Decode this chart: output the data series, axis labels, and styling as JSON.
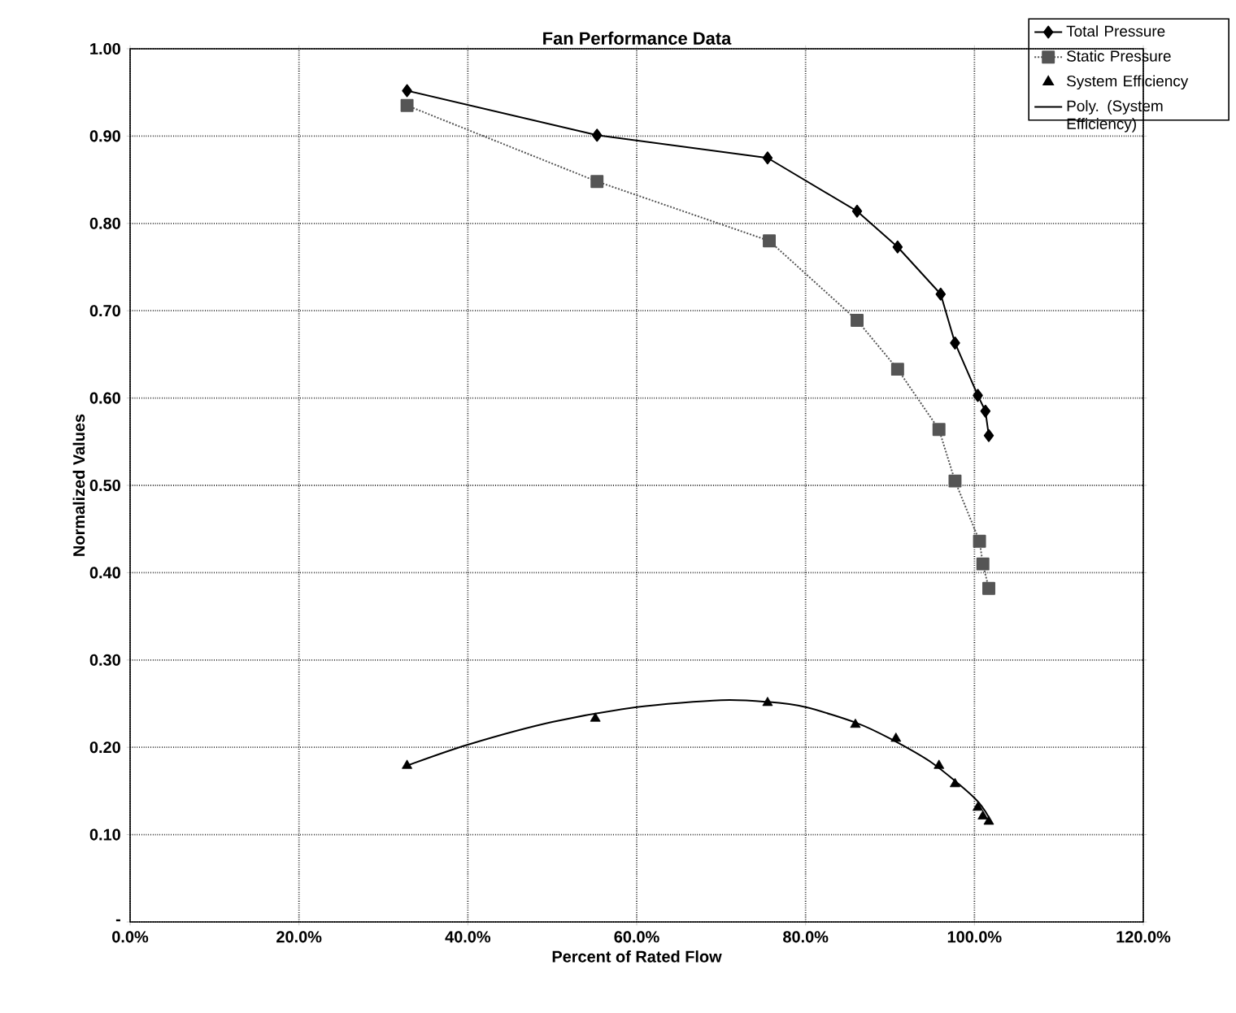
{
  "chart_data": {
    "type": "line",
    "title": "Fan Performance Data",
    "xlabel": "Percent of Rated Flow",
    "ylabel": "Normalized Values",
    "xlim": [
      0,
      1.2
    ],
    "ylim": [
      0,
      1
    ],
    "xticks": [
      {
        "value": 0,
        "label": "0.0%"
      },
      {
        "value": 0.2,
        "label": "20.0%"
      },
      {
        "value": 0.4,
        "label": "40.0%"
      },
      {
        "value": 0.6,
        "label": "60.0%"
      },
      {
        "value": 0.8,
        "label": "80.0%"
      },
      {
        "value": 1.0,
        "label": "100.0%"
      },
      {
        "value": 1.2,
        "label": "120.0%"
      }
    ],
    "yticks": [
      {
        "value": 0,
        "label": "-"
      },
      {
        "value": 0.1,
        "label": "0.10"
      },
      {
        "value": 0.2,
        "label": "0.20"
      },
      {
        "value": 0.3,
        "label": "0.30"
      },
      {
        "value": 0.4,
        "label": "0.40"
      },
      {
        "value": 0.5,
        "label": "0.50"
      },
      {
        "value": 0.6,
        "label": "0.60"
      },
      {
        "value": 0.7,
        "label": "0.70"
      },
      {
        "value": 0.8,
        "label": "0.80"
      },
      {
        "value": 0.9,
        "label": "0.90"
      },
      {
        "value": 1.0,
        "label": "1.00"
      }
    ],
    "grid": true,
    "legend": "top right",
    "series": [
      {
        "name": "Total Pressure",
        "type": "line",
        "color": "#000000",
        "marker": "diamond",
        "line_style": "solid",
        "x": [
          0.328,
          0.553,
          0.755,
          0.861,
          0.909,
          0.96,
          0.977,
          1.004,
          1.013,
          1.017
        ],
        "values": [
          0.952,
          0.901,
          0.875,
          0.814,
          0.773,
          0.719,
          0.663,
          0.603,
          0.585,
          0.557
        ]
      },
      {
        "name": "Static Pressure",
        "type": "line",
        "color": "#555555",
        "marker": "square",
        "line_style": "dotted",
        "x": [
          0.328,
          0.553,
          0.757,
          0.861,
          0.909,
          0.958,
          0.977,
          1.006,
          1.01,
          1.017
        ],
        "values": [
          0.935,
          0.848,
          0.78,
          0.689,
          0.633,
          0.564,
          0.505,
          0.436,
          0.41,
          0.382
        ]
      },
      {
        "name": "System Efficiency",
        "type": "scatter",
        "color": "#000000",
        "marker": "triangle",
        "x": [
          0.328,
          0.551,
          0.755,
          0.859,
          0.907,
          0.958,
          0.977,
          1.004,
          1.01,
          1.017
        ],
        "values": [
          0.179,
          0.233,
          0.251,
          0.226,
          0.21,
          0.179,
          0.158,
          0.131,
          0.121,
          0.115
        ]
      },
      {
        "name": "Poly. (System Efficiency)",
        "type": "line",
        "color": "#000000",
        "marker": "none",
        "line_style": "solid",
        "x": [
          0.328,
          0.4,
          0.5,
          0.6,
          0.7,
          0.755,
          0.8,
          0.86,
          0.9,
          0.95,
          1.0,
          1.017
        ],
        "values": [
          0.179,
          0.203,
          0.229,
          0.246,
          0.254,
          0.252,
          0.246,
          0.228,
          0.21,
          0.182,
          0.142,
          0.12
        ]
      }
    ]
  }
}
